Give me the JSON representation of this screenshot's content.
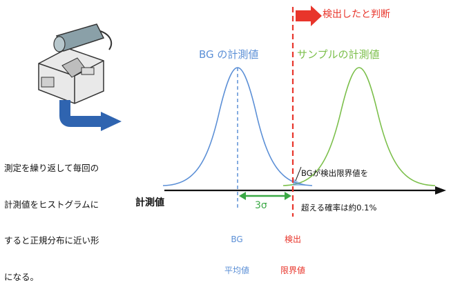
{
  "diagram": {
    "bg_distribution_label": "BG の計測値",
    "sample_distribution_label": "サンプルの計測値",
    "detected_label": "検出したと判断",
    "explanation_lines": [
      "測定を繰り返して毎回の",
      "計測値をヒストグラムに",
      "すると正規分布に近い形",
      "になる。"
    ],
    "probability_lines": [
      "BGが検出限界値を",
      "超える確率は約0.1%"
    ],
    "axis_label": "計測値",
    "sigma_label": "3σ",
    "bg_mean_lines": [
      "BG",
      "平均値"
    ],
    "detection_limit_lines": [
      "検出",
      "限界値"
    ]
  },
  "colors": {
    "bg_curve": "#5b8fd6",
    "sample_curve": "#7bbf4a",
    "detection_limit": "#e8352b",
    "sigma_arrow": "#3aa845",
    "process_arrow": "#2f64b0"
  },
  "icons": {
    "instrument": "measuring-instrument-icon",
    "process_arrow": "curved-arrow-right-icon",
    "detect_arrow": "arrow-right-icon"
  }
}
